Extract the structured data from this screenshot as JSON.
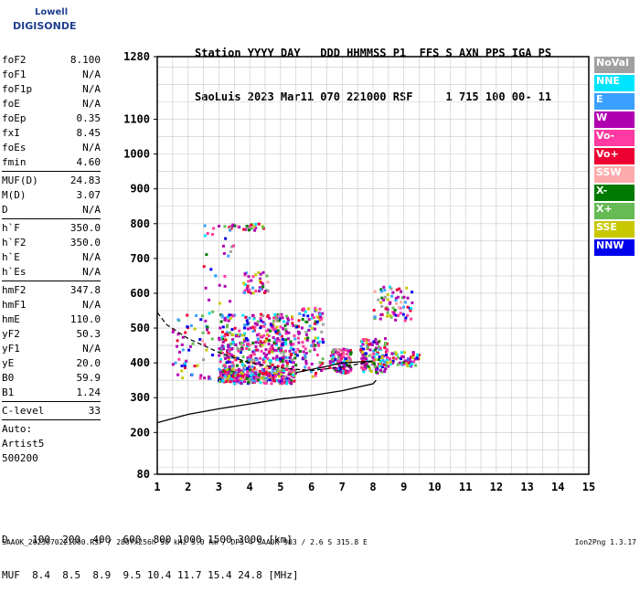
{
  "logo": {
    "line1": "Lowell",
    "line2": "DIGISONDE"
  },
  "header": {
    "line1": "Station YYYY DAY   DDD HHMMSS P1  FFS S AXN PPS IGA PS",
    "line2": "SaoLuis 2023 Mar11 070 221000 RSF     1 715 100 00- 11"
  },
  "params": {
    "group1": [
      {
        "name": "foF2",
        "value": "8.100"
      },
      {
        "name": "foF1",
        "value": "N/A"
      },
      {
        "name": "foF1p",
        "value": "N/A"
      },
      {
        "name": "foE",
        "value": "N/A"
      },
      {
        "name": "foEp",
        "value": "0.35"
      },
      {
        "name": "fxI",
        "value": "8.45"
      },
      {
        "name": "foEs",
        "value": "N/A"
      },
      {
        "name": "fmin",
        "value": "4.60"
      }
    ],
    "group2": [
      {
        "name": "MUF(D)",
        "value": "24.83"
      },
      {
        "name": "M(D)",
        "value": "3.07"
      },
      {
        "name": "D",
        "value": "N/A"
      }
    ],
    "group3": [
      {
        "name": "h`F",
        "value": "350.0"
      },
      {
        "name": "h`F2",
        "value": "350.0"
      },
      {
        "name": "h`E",
        "value": "N/A"
      },
      {
        "name": "h`Es",
        "value": "N/A"
      }
    ],
    "group4": [
      {
        "name": "hmF2",
        "value": "347.8"
      },
      {
        "name": "hmF1",
        "value": "N/A"
      },
      {
        "name": "hmE",
        "value": "110.0"
      },
      {
        "name": "yF2",
        "value": "50.3"
      },
      {
        "name": "yF1",
        "value": "N/A"
      },
      {
        "name": "yE",
        "value": "20.0"
      },
      {
        "name": "B0",
        "value": "59.9"
      },
      {
        "name": "B1",
        "value": "1.24"
      }
    ],
    "clevel": {
      "name": "C-level",
      "value": "33"
    },
    "auto": [
      "Auto:",
      "Artist5",
      "500200"
    ]
  },
  "legend": [
    {
      "label": "NoVal",
      "color": "#a0a0a0"
    },
    {
      "label": "NNE",
      "color": "#00e5ff"
    },
    {
      "label": "E",
      "color": "#3aa0ff"
    },
    {
      "label": "W",
      "color": "#b000b0"
    },
    {
      "label": "Vo-",
      "color": "#ff3aa0"
    },
    {
      "label": "Vo+",
      "color": "#ee0033"
    },
    {
      "label": "SSW",
      "color": "#ffaaaa"
    },
    {
      "label": "X-",
      "color": "#007a00"
    },
    {
      "label": "X+",
      "color": "#66bb55"
    },
    {
      "label": "SSE",
      "color": "#c8c800"
    },
    {
      "label": "NNW",
      "color": "#0000ee"
    }
  ],
  "footer": {
    "line1": "D    100  200  400  600  800 1000 1500 3000 [km]",
    "line2": "MUF  8.4  8.5  8.9  9.5 10.4 11.7 15.4 24.8 [MHz]"
  },
  "credit": "SAA0K_2023070221000.RSF / 280fx256h 50 kHz 5.0 km / DPS-4 SAA0K 903 / 2.6 S 315.8 E",
  "version": "Ion2Png 1.3.17",
  "chart_data": {
    "type": "scatter",
    "title": "",
    "xlabel": "",
    "ylabel": "",
    "xlim": [
      1,
      15
    ],
    "ylim": [
      80,
      1280
    ],
    "x_ticks": [
      1,
      2,
      3,
      4,
      5,
      6,
      7,
      8,
      9,
      10,
      11,
      12,
      13,
      14,
      15
    ],
    "y_ticks": [
      80,
      200,
      300,
      400,
      500,
      600,
      700,
      800,
      900,
      1000,
      1100,
      1280
    ],
    "grid": true,
    "clusters": [
      {
        "x": [
          3.0,
          3.5
        ],
        "y": [
          345,
          380
        ],
        "n": 120
      },
      {
        "x": [
          3.5,
          5.5
        ],
        "y": [
          340,
          380
        ],
        "n": 220
      },
      {
        "x": [
          3.0,
          5.5
        ],
        "y": [
          380,
          460
        ],
        "n": 260
      },
      {
        "x": [
          3.0,
          5.5
        ],
        "y": [
          460,
          540
        ],
        "n": 180
      },
      {
        "x": [
          5.5,
          6.4
        ],
        "y": [
          360,
          560
        ],
        "n": 110
      },
      {
        "x": [
          6.6,
          7.3
        ],
        "y": [
          370,
          440
        ],
        "n": 110
      },
      {
        "x": [
          7.6,
          8.5
        ],
        "y": [
          370,
          470
        ],
        "n": 140
      },
      {
        "x": [
          8.5,
          9.5
        ],
        "y": [
          390,
          430
        ],
        "n": 60
      },
      {
        "x": [
          8.0,
          9.3
        ],
        "y": [
          520,
          620
        ],
        "n": 70
      },
      {
        "x": [
          3.8,
          4.6
        ],
        "y": [
          600,
          660
        ],
        "n": 40
      },
      {
        "x": [
          3.0,
          4.5
        ],
        "y": [
          780,
          800
        ],
        "n": 30
      },
      {
        "x": [
          1.5,
          2.8
        ],
        "y": [
          350,
          560
        ],
        "n": 60
      },
      {
        "x": [
          2.5,
          3.5
        ],
        "y": [
          560,
          800
        ],
        "n": 25
      }
    ],
    "trace_main": [
      [
        1,
        228
      ],
      [
        2,
        252
      ],
      [
        3,
        268
      ],
      [
        4,
        282
      ],
      [
        5,
        296
      ],
      [
        6,
        306
      ],
      [
        7,
        320
      ],
      [
        8,
        340
      ],
      [
        8.1,
        350
      ]
    ],
    "trace_dashed": [
      [
        1.0,
        545
      ],
      [
        1.3,
        510
      ],
      [
        2.0,
        470
      ],
      [
        3.0,
        430
      ],
      [
        4.0,
        400
      ],
      [
        5.0,
        385
      ],
      [
        6.0,
        378
      ],
      [
        7.0,
        388
      ],
      [
        8.0,
        405
      ]
    ],
    "trace_solid2": [
      [
        5.5,
        372
      ],
      [
        6.5,
        390
      ],
      [
        7.0,
        400
      ],
      [
        8.0,
        405
      ]
    ]
  }
}
